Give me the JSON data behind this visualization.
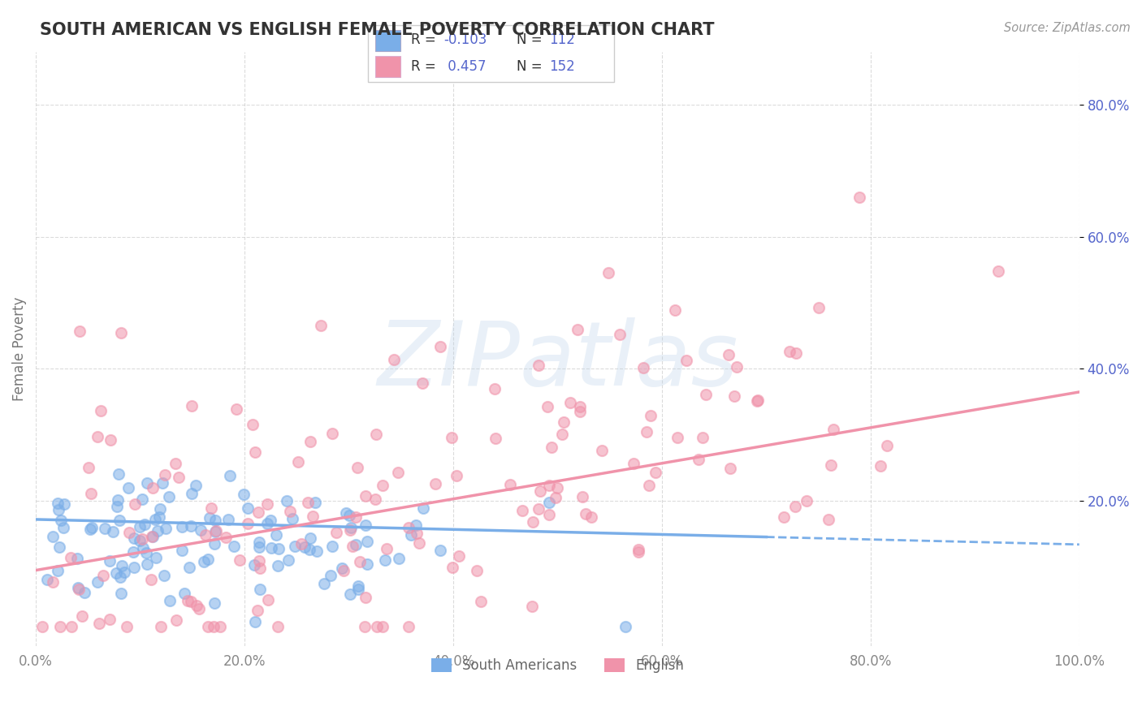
{
  "title": "SOUTH AMERICAN VS ENGLISH FEMALE POVERTY CORRELATION CHART",
  "source": "Source: ZipAtlas.com",
  "ylabel": "Female Poverty",
  "xlim": [
    0.0,
    1.0
  ],
  "ylim": [
    -0.02,
    0.88
  ],
  "yticks": [
    0.2,
    0.4,
    0.6,
    0.8
  ],
  "xticks": [
    0.0,
    0.2,
    0.4,
    0.6,
    0.8,
    1.0
  ],
  "blue_color": "#7aaee8",
  "pink_color": "#f093aa",
  "blue_R": -0.103,
  "blue_N": 112,
  "pink_R": 0.457,
  "pink_N": 152,
  "watermark": "ZIPatlas",
  "legend_blue_label": "South Americans",
  "legend_pink_label": "English",
  "background_color": "#ffffff",
  "grid_color": "#cccccc",
  "title_color": "#333333",
  "axis_label_color": "#777777",
  "tick_color_y": "#5566cc",
  "tick_color_x": "#888888",
  "blue_trend_start_y": 0.172,
  "blue_trend_end_y": 0.134,
  "pink_trend_start_y": 0.095,
  "pink_trend_end_y": 0.365
}
